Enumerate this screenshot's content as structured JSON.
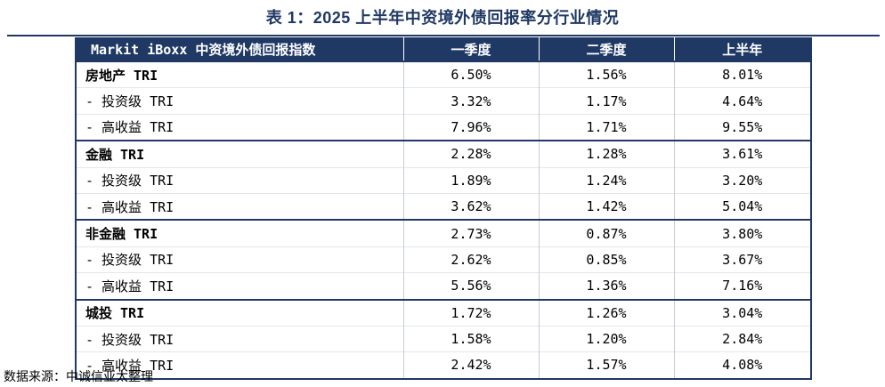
{
  "title": "表 1：2025 上半年中资境外债回报率分行业情况",
  "header": {
    "col0": "Markit iBoxx 中资境外债回报指数",
    "col1": "一季度",
    "col2": "二季度",
    "col3": "上半年"
  },
  "rows": [
    {
      "label": "房地产 TRI",
      "q1": "6.50%",
      "q2": "1.56%",
      "h1": "8.01%"
    },
    {
      "label": "- 投资级 TRI",
      "q1": "3.32%",
      "q2": "1.17%",
      "h1": "4.64%"
    },
    {
      "label": "- 高收益 TRI",
      "q1": "7.96%",
      "q2": "1.71%",
      "h1": "9.55%"
    },
    {
      "label": "金融 TRI",
      "q1": "2.28%",
      "q2": "1.28%",
      "h1": "3.61%"
    },
    {
      "label": "- 投资级 TRI",
      "q1": "1.89%",
      "q2": "1.24%",
      "h1": "3.20%"
    },
    {
      "label": "- 高收益 TRI",
      "q1": "3.62%",
      "q2": "1.42%",
      "h1": "5.04%"
    },
    {
      "label": "非金融 TRI",
      "q1": "2.73%",
      "q2": "0.87%",
      "h1": "3.80%"
    },
    {
      "label": "- 投资级 TRI",
      "q1": "2.62%",
      "q2": "0.85%",
      "h1": "3.67%"
    },
    {
      "label": "- 高收益 TRI",
      "q1": "5.56%",
      "q2": "1.36%",
      "h1": "7.16%"
    },
    {
      "label": "城投 TRI",
      "q1": "1.72%",
      "q2": "1.26%",
      "h1": "3.04%"
    },
    {
      "label": "- 投资级 TRI",
      "q1": "1.58%",
      "q2": "1.20%",
      "h1": "2.84%"
    },
    {
      "label": "- 高收益 TRI",
      "q1": "2.42%",
      "q2": "1.57%",
      "h1": "4.08%"
    }
  ],
  "source": "数据来源：中诚信亚太整理",
  "colors": {
    "header_bg": "#1f3864",
    "title": "#1f3864"
  }
}
